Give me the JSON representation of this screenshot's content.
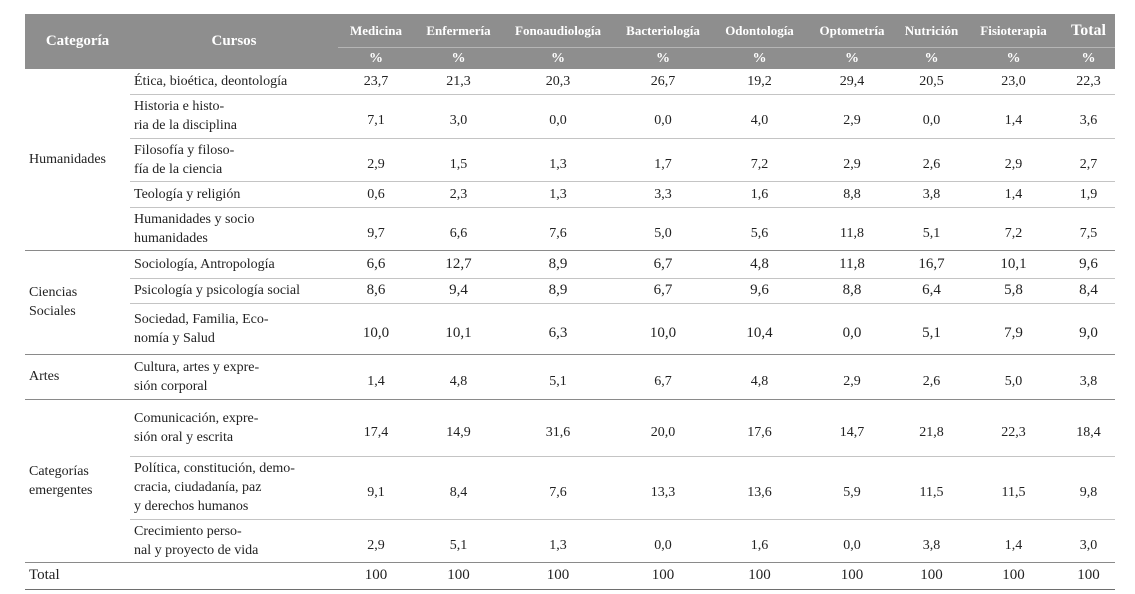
{
  "header": {
    "columns": [
      "Categoría",
      "Cursos",
      "Medicina",
      "Enfermería",
      "Fonoaudiología",
      "Bacteriología",
      "Odontología",
      "Optometría",
      "Nutrición",
      "Fisioterapia",
      "Total"
    ],
    "units": [
      "%",
      "%",
      "%",
      "%",
      "%",
      "%",
      "%",
      "%",
      "%"
    ]
  },
  "groups": [
    {
      "category": "Humanidades",
      "courses": [
        {
          "name": "Ética, bioética, deontología",
          "values": [
            "23,7",
            "21,3",
            "20,3",
            "26,7",
            "19,2",
            "29,4",
            "20,5",
            "23,0",
            "22,3"
          ]
        },
        {
          "name": "Historia e histo-\nria de la disciplina",
          "values": [
            "7,1",
            "3,0",
            "0,0",
            "0,0",
            "4,0",
            "2,9",
            "0,0",
            "1,4",
            "3,6"
          ]
        },
        {
          "name": "Filosofía y filoso-\nfía de la ciencia",
          "values": [
            "2,9",
            "1,5",
            "1,3",
            "1,7",
            "7,2",
            "2,9",
            "2,6",
            "2,9",
            "2,7"
          ]
        },
        {
          "name": "Teología y religión",
          "values": [
            "0,6",
            "2,3",
            "1,3",
            "3,3",
            "1,6",
            "8,8",
            "3,8",
            "1,4",
            "1,9"
          ]
        },
        {
          "name": "Humanidades y socio\nhumanidades",
          "values": [
            "9,7",
            "6,6",
            "7,6",
            "5,0",
            "5,6",
            "11,8",
            "5,1",
            "7,2",
            "7,5"
          ]
        }
      ]
    },
    {
      "category": "Ciencias\nSociales",
      "courses": [
        {
          "name": "Sociología, Antropología",
          "values": [
            "6,6",
            "12,7",
            "8,9",
            "6,7",
            "4,8",
            "11,8",
            "16,7",
            "10,1",
            "9,6"
          ]
        },
        {
          "name": "Psicología y psicología social",
          "values": [
            "8,6",
            "9,4",
            "8,9",
            "6,7",
            "9,6",
            "8,8",
            "6,4",
            "5,8",
            "8,4"
          ]
        },
        {
          "name": "Sociedad, Familia, Eco-\nnomía y Salud",
          "values": [
            "10,0",
            "10,1",
            "6,3",
            "10,0",
            "10,4",
            "0,0",
            "5,1",
            "7,9",
            "9,0"
          ]
        }
      ]
    },
    {
      "category": "Artes",
      "courses": [
        {
          "name": "Cultura, artes y expre-\nsión corporal",
          "values": [
            "1,4",
            "4,8",
            "5,1",
            "6,7",
            "4,8",
            "2,9",
            "2,6",
            "5,0",
            "3,8"
          ]
        }
      ]
    },
    {
      "category": "Categorías\nemergentes",
      "courses": [
        {
          "name": "Comunicación, expre-\nsión oral y escrita",
          "values": [
            "17,4",
            "14,9",
            "31,6",
            "20,0",
            "17,6",
            "14,7",
            "21,8",
            "22,3",
            "18,4"
          ]
        },
        {
          "name": "Política, constitución, demo-\ncracia, ciudadanía, paz\ny derechos humanos",
          "values": [
            "9,1",
            "8,4",
            "7,6",
            "13,3",
            "13,6",
            "5,9",
            "11,5",
            "11,5",
            "9,8"
          ]
        },
        {
          "name": "Crecimiento perso-\nnal y proyecto de vida",
          "values": [
            "2,9",
            "5,1",
            "1,3",
            "0,0",
            "1,6",
            "0,0",
            "3,8",
            "1,4",
            "3,0"
          ]
        }
      ]
    }
  ],
  "total": {
    "label": "Total",
    "values": [
      "100",
      "100",
      "100",
      "100",
      "100",
      "100",
      "100",
      "100",
      "100"
    ]
  }
}
